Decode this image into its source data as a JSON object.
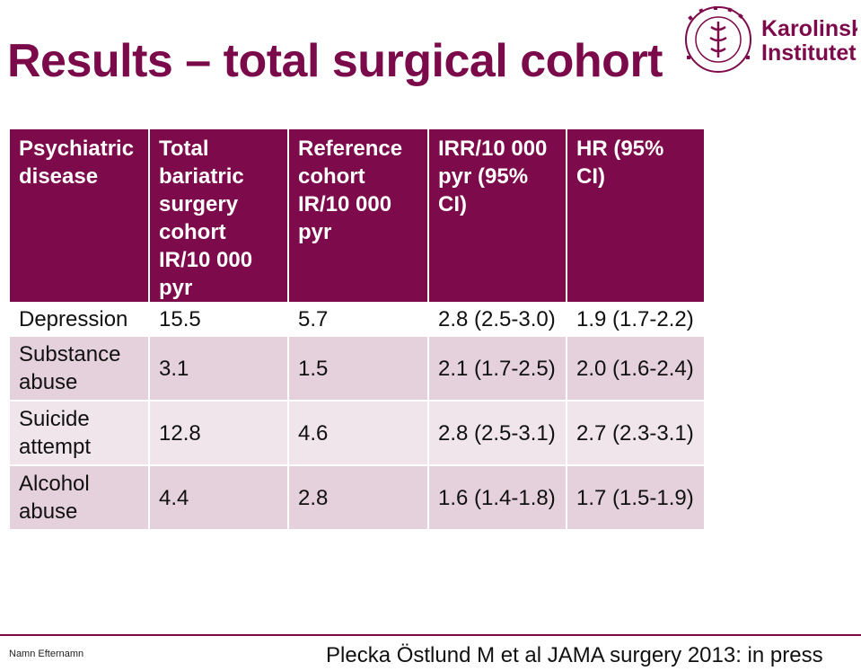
{
  "title": "Results – total surgical cohort",
  "logo": {
    "text_line1": "Karolinska",
    "text_line2": "Institutet",
    "seal_text": "KAROLINSKA INSTITUTET ANNO 1810",
    "color": "#7d0a4a"
  },
  "table": {
    "headers": [
      "Psychiatric disease",
      "Total bariatric surgery cohort IR/10 000 pyr",
      "Reference cohort IR/10 000 pyr",
      "IRR/10 000 pyr (95% CI)",
      "HR (95% CI)"
    ],
    "rows": [
      [
        "Depression",
        "15.5",
        "5.7",
        "2.8 (2.5-3.0)",
        "1.9 (1.7-2.2)"
      ],
      [
        "Substance abuse",
        "3.1",
        "1.5",
        "2.1 (1.7-2.5)",
        "2.0 (1.6-2.4)"
      ],
      [
        "Suicide attempt",
        "12.8",
        "4.6",
        "2.8 (2.5-3.1)",
        "2.7 (2.3-3.1)"
      ],
      [
        "Alcohol abuse",
        "4.4",
        "2.8",
        "1.6 (1.4-1.8)",
        "1.7 (1.5-1.9)"
      ]
    ]
  },
  "footer": {
    "left": "Namn Efternamn",
    "right": "Plecka Östlund M et al JAMA surgery 2013: in press"
  },
  "colors": {
    "brand": "#7d0a4a",
    "row_dark": "#e5d1dc",
    "row_light": "#efe5ea"
  }
}
